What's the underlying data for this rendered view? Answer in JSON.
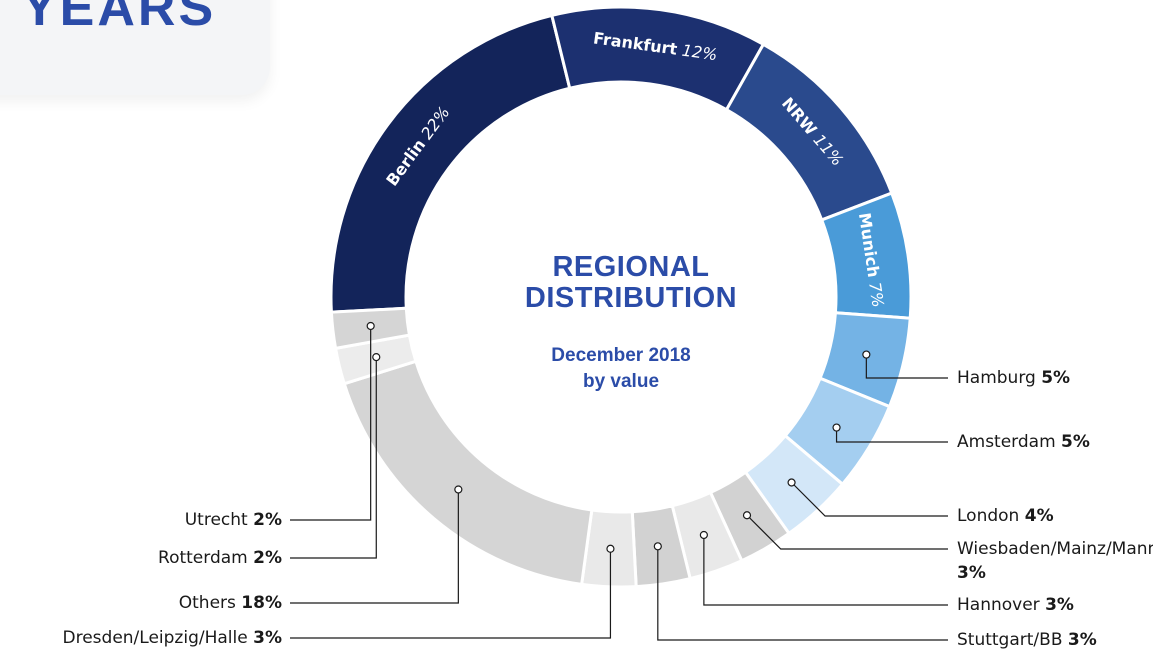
{
  "header": {
    "title": "YEARS"
  },
  "chart_data": {
    "type": "donut",
    "title": "REGIONAL DISTRIBUTION",
    "subtitle": "December 2018 by value",
    "categories": [
      "Berlin",
      "Frankfurt",
      "NRW",
      "Munich",
      "Hamburg",
      "Amsterdam",
      "London",
      "Wiesbaden/Mainz/Mannheim",
      "Hannover",
      "Stuttgart/BB",
      "Dresden/Leipzig/Halle",
      "Others",
      "Rotterdam",
      "Utrecht"
    ],
    "values": [
      22,
      12,
      11,
      7,
      5,
      5,
      4,
      3,
      3,
      3,
      3,
      18,
      2,
      2
    ],
    "value_labels": [
      "22%",
      "12%",
      "11%",
      "7%",
      "5%",
      "5%",
      "4%",
      "3%",
      "3%",
      "3%",
      "3%",
      "18%",
      "2%",
      "2%"
    ],
    "colors": [
      "#13245a",
      "#1c3070",
      "#2a4a8d",
      "#4a9bd8",
      "#74b3e5",
      "#a4cef0",
      "#d3e7f8",
      "#d2d2d2",
      "#e9e9e9",
      "#d2d2d2",
      "#e9e9e9",
      "#d5d5d5",
      "#ececec",
      "#d5d5d5"
    ]
  }
}
